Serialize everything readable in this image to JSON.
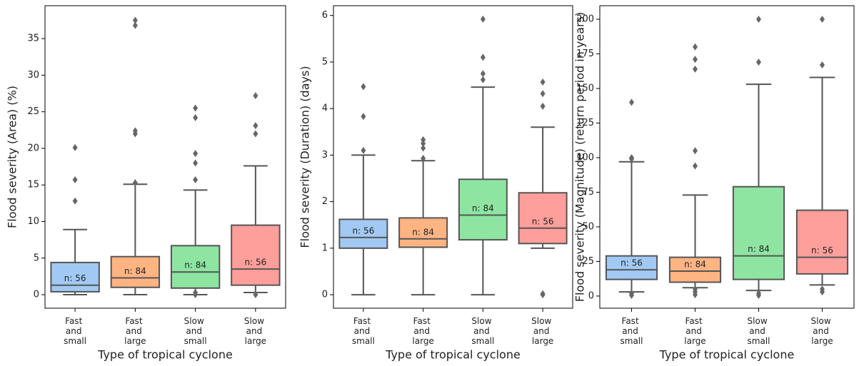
{
  "chart_data": [
    {
      "type": "box",
      "ylabel": "Flood severity (Area) (%)",
      "xlabel": "Type of tropical cyclone",
      "categories": [
        "Fast and small",
        "Fast and large",
        "Slow and small",
        "Slow and large"
      ],
      "colors": [
        "#a1c9f4",
        "#ffb482",
        "#8de5a1",
        "#ff9f9b"
      ],
      "ylim": [
        -1.85,
        39.5
      ],
      "yticks": [
        0,
        5,
        10,
        15,
        20,
        25,
        30,
        35
      ],
      "boxes": [
        {
          "whislo": 0,
          "q1": 0.4,
          "med": 1.3,
          "q3": 4.4,
          "whishi": 8.9,
          "fliers": [
            12.8,
            15.7,
            20.1
          ],
          "label": "n: 56"
        },
        {
          "whislo": 0,
          "q1": 1.0,
          "med": 2.3,
          "q3": 5.2,
          "whishi": 15.1,
          "fliers": [
            15.3,
            22.0,
            22.4,
            36.8,
            37.5
          ],
          "label": "n: 84"
        },
        {
          "whislo": 0,
          "q1": 0.9,
          "med": 3.1,
          "q3": 6.7,
          "whishi": 14.3,
          "fliers": [
            0.3,
            0,
            15.7,
            18.0,
            19.3,
            24.2,
            25.5
          ],
          "label": "n: 84"
        },
        {
          "whislo": 0.3,
          "q1": 1.3,
          "med": 3.5,
          "q3": 9.5,
          "whishi": 17.6,
          "fliers": [
            0,
            22.0,
            23.1,
            27.2
          ],
          "label": "n: 56"
        }
      ]
    },
    {
      "type": "box",
      "ylabel": "Flood severity (Duration) (days)",
      "xlabel": "Type of tropical cyclone",
      "categories": [
        "Fast and small",
        "Fast and large",
        "Slow and small",
        "Slow and large"
      ],
      "colors": [
        "#a1c9f4",
        "#ffb482",
        "#8de5a1",
        "#ff9f9b"
      ],
      "ylim": [
        -0.29,
        6.21
      ],
      "yticks": [
        0,
        1,
        2,
        3,
        4,
        5,
        6
      ],
      "boxes": [
        {
          "whislo": 0,
          "q1": 1.0,
          "med": 1.23,
          "q3": 1.62,
          "whishi": 3.0,
          "fliers": [
            3.1,
            3.83,
            4.47
          ],
          "label": "n: 56"
        },
        {
          "whislo": 0,
          "q1": 1.02,
          "med": 1.2,
          "q3": 1.65,
          "whishi": 2.88,
          "fliers": [
            2.93,
            3.15,
            3.25,
            3.33
          ],
          "label": "n: 84"
        },
        {
          "whislo": 0,
          "q1": 1.18,
          "med": 1.71,
          "q3": 2.48,
          "whishi": 4.46,
          "fliers": [
            4.62,
            4.75,
            5.1,
            5.92
          ],
          "label": "n: 84"
        },
        {
          "whislo": 1.0,
          "q1": 1.1,
          "med": 1.43,
          "q3": 2.19,
          "whishi": 3.6,
          "fliers": [
            0,
            0.02,
            4.05,
            4.32,
            4.57
          ],
          "label": "n: 56"
        }
      ]
    },
    {
      "type": "box",
      "ylabel": "Flood severity (Magnitude) (return period in years)",
      "xlabel": "Type of tropical cyclone",
      "categories": [
        "Fast and small",
        "Fast and large",
        "Slow and small",
        "Slow and large"
      ],
      "colors": [
        "#a1c9f4",
        "#ffb482",
        "#8de5a1",
        "#ff9f9b"
      ],
      "ylim": [
        -8.8,
        209.8
      ],
      "yticks": [
        0,
        25,
        50,
        75,
        100,
        125,
        150,
        175,
        200
      ],
      "boxes": [
        {
          "whislo": 3,
          "q1": 12,
          "med": 19,
          "q3": 29,
          "whishi": 97,
          "fliers": [
            0.5,
            2,
            99,
            100,
            140
          ],
          "label": "n: 56"
        },
        {
          "whislo": 6,
          "q1": 10,
          "med": 18,
          "q3": 28,
          "whishi": 73,
          "fliers": [
            1,
            3,
            5,
            94,
            105,
            164,
            171,
            180
          ],
          "label": "n: 84"
        },
        {
          "whislo": 4,
          "q1": 12,
          "med": 29,
          "q3": 79,
          "whishi": 153,
          "fliers": [
            0.5,
            2,
            169,
            200
          ],
          "label": "n: 84"
        },
        {
          "whislo": 8,
          "q1": 16,
          "med": 28,
          "q3": 62,
          "whishi": 158,
          "fliers": [
            3,
            5,
            167,
            200
          ],
          "label": "n: 56"
        }
      ]
    }
  ]
}
